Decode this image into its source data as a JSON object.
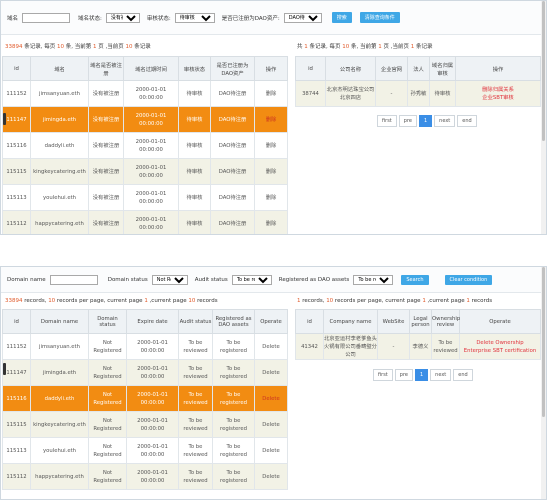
{
  "cn": {
    "domain_label": "域名",
    "status_label": "域名状态:",
    "status_value": "没有被注册",
    "audit_label": "审核状态:",
    "audit_value": "待审核",
    "dao_label": "是否已注册为DAO资产:",
    "dao_value": "DAO待注册",
    "search": "搜索",
    "clear": "清除查询条件",
    "left_stat": {
      "count": "33894",
      "a": " 条记录, 每页 ",
      "per": "10",
      "b": " 条, 当前第 ",
      "page": "1",
      "c": " 页 ,当前页 ",
      "cur": "10",
      "d": " 条记录"
    },
    "right_stat": {
      "a": "共 ",
      "count": "1",
      "b": " 条记录, 每页 ",
      "per": "10",
      "c": " 条, 当前第 ",
      "page": "1",
      "d": " 页 ,当前页 ",
      "cur": "1",
      "e": " 条记录"
    },
    "left_headers": [
      "id",
      "域名",
      "域名是否被注册",
      "域名过期时间",
      "审核状态",
      "是否已注册为DAO资产",
      "操作"
    ],
    "rows": [
      {
        "id": "111152",
        "domain": "jimsanyuan.eth",
        "status": "没有被注册",
        "expire": "2000-01-01 00:00:00",
        "audit": "待审核",
        "dao": "DAO待注册",
        "op": "删除"
      },
      {
        "id": "111147",
        "domain": "jimingda.eth",
        "status": "没有被注册",
        "expire": "2000-01-01 00:00:00",
        "audit": "待审核",
        "dao": "DAO待注册",
        "op": "删除"
      },
      {
        "id": "115116",
        "domain": "daddyli.eth",
        "status": "没有被注册",
        "expire": "2000-01-01 00:00:00",
        "audit": "待审核",
        "dao": "DAO待注册",
        "op": "删除"
      },
      {
        "id": "115115",
        "domain": "kingkeycatering.eth",
        "status": "没有被注册",
        "expire": "2000-01-01 00:00:00",
        "audit": "待审核",
        "dao": "DAO待注册",
        "op": "删除"
      },
      {
        "id": "115113",
        "domain": "youlehui.eth",
        "status": "没有被注册",
        "expire": "2000-01-01 00:00:00",
        "audit": "待审核",
        "dao": "DAO待注册",
        "op": "删除"
      },
      {
        "id": "115112",
        "domain": "happycatering.eth",
        "status": "没有被注册",
        "expire": "2000-01-01 00:00:00",
        "audit": "待审核",
        "dao": "DAO待注册",
        "op": "删除"
      }
    ],
    "right_headers": [
      "id",
      "公司名称",
      "企业官网",
      "法人",
      "域名归属审核",
      "操作"
    ],
    "right_row": {
      "id": "38744",
      "company": "北京杰明达珠宝公司北京四店",
      "site": "-",
      "legal": "孙秀敏",
      "audit": "待审核",
      "op1": "删除归属关系",
      "op2": "企业SBT审核"
    },
    "pager": [
      "first",
      "pre",
      "1",
      "next",
      "end"
    ]
  },
  "en": {
    "domain_label": "Domain name",
    "status_label": "Domain status",
    "status_value": "Not Regis",
    "audit_label": "Audit status",
    "audit_value": "To be revie",
    "dao_label": "Registered as DAO assets",
    "dao_value": "To be regis",
    "search": "Search",
    "clear": "Clear condition",
    "left_stat": {
      "count": "33894",
      "a": " records, ",
      "per": "10",
      "b": " records per page, current page ",
      "page": "1",
      "c": " ,current page ",
      "cur": "10",
      "d": " records"
    },
    "right_stat": {
      "count": "1",
      "a": " records, ",
      "per": "10",
      "b": " records per page, current page ",
      "page": "1",
      "c": " ,current page ",
      "cur": "1",
      "d": " records"
    },
    "left_headers": [
      "id",
      "Domain name",
      "Domain status",
      "Expire date",
      "Audit status",
      "Registered as DAO assets",
      "Operate"
    ],
    "rows": [
      {
        "id": "111152",
        "domain": "jimsanyuan.eth",
        "status": "Not Registered",
        "expire": "2000-01-01 00:00:00",
        "audit": "To be reviewed",
        "dao": "To be registered",
        "op": "Delete"
      },
      {
        "id": "111147",
        "domain": "jimingda.eth",
        "status": "Not Registered",
        "expire": "2000-01-01 00:00:00",
        "audit": "To be reviewed",
        "dao": "To be registered",
        "op": "Delete"
      },
      {
        "id": "115116",
        "domain": "daddyli.eth",
        "status": "Not Registered",
        "expire": "2000-01-01 00:00:00",
        "audit": "To be reviewed",
        "dao": "To be registered",
        "op": "Delete"
      },
      {
        "id": "115115",
        "domain": "kingkeycatering.eth",
        "status": "Not Registered",
        "expire": "2000-01-01 00:00:00",
        "audit": "To be reviewed",
        "dao": "To be registered",
        "op": "Delete"
      },
      {
        "id": "115113",
        "domain": "youlehui.eth",
        "status": "Not Registered",
        "expire": "2000-01-01 00:00:00",
        "audit": "To be reviewed",
        "dao": "To be registered",
        "op": "Delete"
      },
      {
        "id": "115112",
        "domain": "happycatering.eth",
        "status": "Not Registered",
        "expire": "2000-01-01 00:00:00",
        "audit": "To be reviewed",
        "dao": "To be registered",
        "op": "Delete"
      }
    ],
    "right_headers": [
      "id",
      "Company name",
      "WebSite",
      "Legal person",
      "Ownership review",
      "Operate"
    ],
    "right_row": {
      "id": "41342",
      "company": "北京亚运村李老爹鱼头火锅有限公司番畴璧分公司",
      "site": "-",
      "legal": "李德义",
      "audit": "To be reviewed",
      "op1": "Delete Ownership",
      "op2": "Enterprise SBT certification"
    },
    "pager": [
      "first",
      "pre",
      "1",
      "next",
      "end"
    ]
  },
  "colors": {
    "accent": "#3fa7e6",
    "selected_row": "#f28c12",
    "delete": "#e0303a"
  }
}
